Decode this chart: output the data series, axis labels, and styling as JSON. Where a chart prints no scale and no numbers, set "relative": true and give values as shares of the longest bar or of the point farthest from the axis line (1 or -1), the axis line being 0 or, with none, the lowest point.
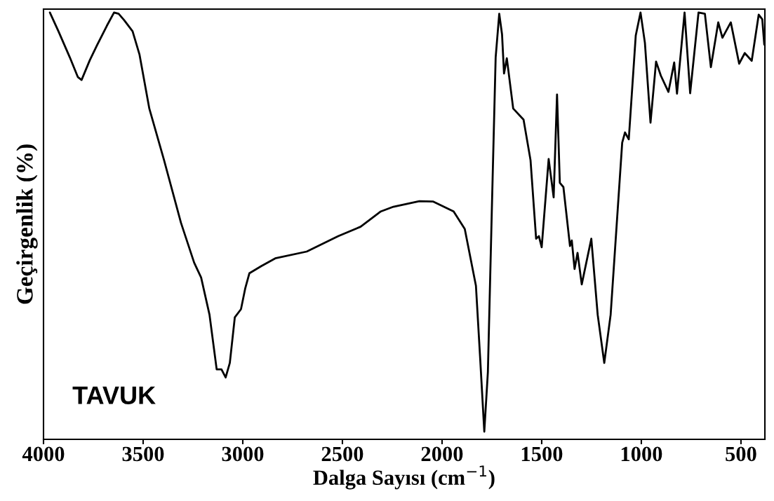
{
  "chart_data": {
    "type": "line",
    "relative": true,
    "xlabel": "Dalga Sayısı (cm$^{−1}$)",
    "ylabel": "Geçirgenlik (%)",
    "annotations": [
      "TAVUK"
    ],
    "tick_labels": "x",
    "xlim": [
      4000,
      380
    ],
    "xticks": [
      4000,
      3500,
      3000,
      2500,
      2000,
      1500,
      1000,
      500
    ],
    "x": [
      3968,
      3925,
      3868,
      3828,
      3809,
      3768,
      3732,
      3682,
      3646,
      3623,
      3595,
      3553,
      3518,
      3469,
      3395,
      3310,
      3244,
      3209,
      3167,
      3131,
      3107,
      3086,
      3065,
      3040,
      3009,
      2988,
      2967,
      2907,
      2837,
      2679,
      2521,
      2409,
      2307,
      2244,
      2114,
      2044,
      1942,
      1886,
      1830,
      1809,
      1788,
      1770,
      1749,
      1731,
      1713,
      1699,
      1689,
      1675,
      1643,
      1591,
      1556,
      1528,
      1514,
      1500,
      1465,
      1440,
      1423,
      1409,
      1391,
      1358,
      1349,
      1335,
      1320,
      1299,
      1251,
      1219,
      1186,
      1154,
      1096,
      1082,
      1063,
      1028,
      1004,
      982,
      954,
      926,
      902,
      864,
      835,
      821,
      783,
      755,
      713,
      681,
      651,
      614,
      593,
      551,
      509,
      481,
      446,
      411,
      393,
      383
    ],
    "series": [
      {
        "color": "#000000",
        "values": [
          1.0,
          0.956,
          0.895,
          0.849,
          0.842,
          0.888,
          0.923,
          0.969,
          1.0,
          0.997,
          0.982,
          0.956,
          0.901,
          0.775,
          0.654,
          0.507,
          0.414,
          0.379,
          0.292,
          0.164,
          0.164,
          0.145,
          0.179,
          0.286,
          0.305,
          0.353,
          0.389,
          0.406,
          0.424,
          0.44,
          0.476,
          0.498,
          0.534,
          0.545,
          0.558,
          0.557,
          0.534,
          0.493,
          0.36,
          0.192,
          0.018,
          0.158,
          0.56,
          0.895,
          0.997,
          0.949,
          0.857,
          0.893,
          0.775,
          0.749,
          0.654,
          0.47,
          0.476,
          0.45,
          0.657,
          0.567,
          0.808,
          0.601,
          0.591,
          0.453,
          0.466,
          0.399,
          0.437,
          0.363,
          0.47,
          0.292,
          0.179,
          0.292,
          0.695,
          0.719,
          0.703,
          0.946,
          1.0,
          0.929,
          0.742,
          0.885,
          0.852,
          0.814,
          0.883,
          0.81,
          1.0,
          0.811,
          1.0,
          0.997,
          0.872,
          0.977,
          0.941,
          0.977,
          0.88,
          0.905,
          0.887,
          0.995,
          0.984,
          0.925
        ]
      }
    ]
  }
}
